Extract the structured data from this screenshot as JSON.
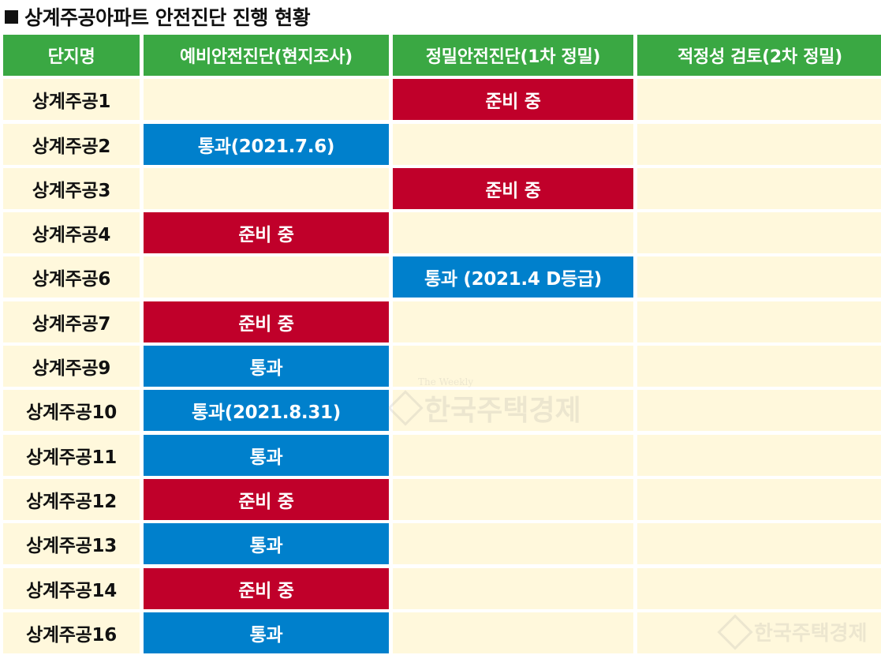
{
  "title": "상계주공아파트 안전진단 진행 현황",
  "header": [
    "단지명",
    "예비안전진단(현지조사)",
    "정밀안전진단(1차 정밀)",
    "적정성 검토(2차 정밀)"
  ],
  "rows": [
    {
      "name": "상계주공1",
      "prelim": "",
      "precise": "준비 중",
      "review": ""
    },
    {
      "name": "상계주공2",
      "prelim": "통과(2021.7.6)",
      "precise": "",
      "review": ""
    },
    {
      "name": "상계주공3",
      "prelim": "",
      "precise": "준비 중",
      "review": ""
    },
    {
      "name": "상계주공4",
      "prelim": "준비 중",
      "precise": "",
      "review": ""
    },
    {
      "name": "상계주공6",
      "prelim": "",
      "precise": "통과 (2021.4 D등급)",
      "review": ""
    },
    {
      "name": "상계주공7",
      "prelim": "준비 중",
      "precise": "",
      "review": ""
    },
    {
      "name": "상계주공9",
      "prelim": "통과",
      "precise": "",
      "review": ""
    },
    {
      "name": "상계주공10",
      "prelim": "통과(2021.8.31)",
      "precise": "",
      "review": ""
    },
    {
      "name": "상계주공11",
      "prelim": "통과",
      "precise": "",
      "review": ""
    },
    {
      "name": "상계주공12",
      "prelim": "준비 중",
      "precise": "",
      "review": ""
    },
    {
      "name": "상계주공13",
      "prelim": "통과",
      "precise": "",
      "review": ""
    },
    {
      "name": "상계주공14",
      "prelim": "준비 중",
      "precise": "",
      "review": ""
    },
    {
      "name": "상계주공16",
      "prelim": "통과",
      "precise": "",
      "review": ""
    }
  ],
  "status_colors": {
    "pass": "#0080cc",
    "pending": "#c0002a",
    "header": "#3aa843",
    "empty": "#fff8dc"
  },
  "watermark": {
    "small": "The Weekly",
    "large": "한국주택경제"
  }
}
